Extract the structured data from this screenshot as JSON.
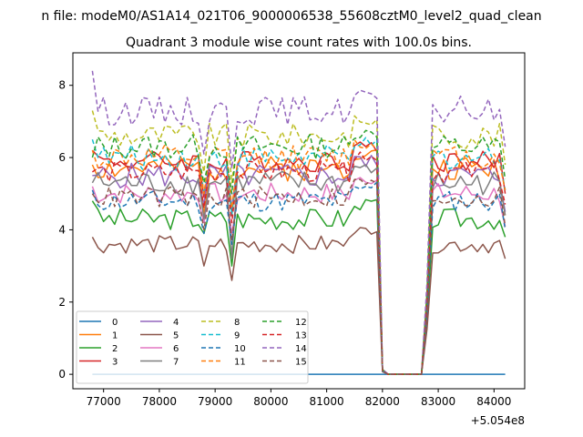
{
  "suptitle": "n file: modeM0/AS1A14_021T06_9000006538_55608cztM0_level2_quad_clean",
  "chart_data": {
    "type": "line",
    "title": "Quadrant 3 module wise count rates with 100.0s bins.",
    "xlabel": "",
    "ylabel": "",
    "x_offset_label": "+5.054e8",
    "xlim": [
      76450,
      84550
    ],
    "ylim": [
      -0.4,
      8.9
    ],
    "xticks": [
      77000,
      78000,
      79000,
      80000,
      81000,
      82000,
      83000,
      84000
    ],
    "xtick_labels": [
      "77000",
      "78000",
      "79000",
      "80000",
      "81000",
      "82000",
      "83000",
      "84000"
    ],
    "yticks": [
      0,
      2,
      4,
      6,
      8
    ],
    "ytick_labels": [
      "0",
      "2",
      "4",
      "6",
      "8"
    ],
    "grid": false,
    "legend_position": "lower-left",
    "legend_columns": 4,
    "segments": [
      {
        "start": 76800,
        "end": 81900,
        "step": 100
      },
      {
        "start": 82000,
        "end": 82700,
        "step": 100
      },
      {
        "start": 82800,
        "end": 84200,
        "step": 100
      }
    ],
    "series": [
      {
        "name": "0",
        "color": "#1f77b4",
        "dash": "solid",
        "level": 0.0,
        "start": 0.0,
        "dips": [
          0,
          0,
          0
        ],
        "seed": 1,
        "wiggle": 0.0
      },
      {
        "name": "1",
        "color": "#ff7f0e",
        "dash": "solid",
        "level": 5.7,
        "start": 5.8,
        "dips": [
          4.4,
          4.5,
          4.4
        ],
        "seed": 2,
        "wiggle": 0.35
      },
      {
        "name": "2",
        "color": "#2ca02c",
        "dash": "solid",
        "level": 4.3,
        "start": 4.8,
        "dips": [
          3.9,
          3.0,
          3.8
        ],
        "seed": 3,
        "wiggle": 0.3
      },
      {
        "name": "3",
        "color": "#d62728",
        "dash": "solid",
        "level": 5.9,
        "start": 6.2,
        "dips": [
          4.9,
          4.5,
          5.0
        ],
        "seed": 4,
        "wiggle": 0.3
      },
      {
        "name": "4",
        "color": "#9467bd",
        "dash": "solid",
        "level": 5.5,
        "start": 5.5,
        "dips": [
          4.7,
          4.6,
          4.5
        ],
        "seed": 5,
        "wiggle": 0.35
      },
      {
        "name": "5",
        "color": "#8c564b",
        "dash": "solid",
        "level": 3.6,
        "start": 3.8,
        "dips": [
          3.0,
          2.6,
          3.2
        ],
        "seed": 6,
        "wiggle": 0.25
      },
      {
        "name": "6",
        "color": "#e377c2",
        "dash": "solid",
        "level": 5.0,
        "start": 5.2,
        "dips": [
          4.2,
          3.9,
          4.1
        ],
        "seed": 7,
        "wiggle": 0.3
      },
      {
        "name": "7",
        "color": "#7f7f7f",
        "dash": "solid",
        "level": 5.3,
        "start": 5.3,
        "dips": [
          4.3,
          3.2,
          4.4
        ],
        "seed": 8,
        "wiggle": 0.35
      },
      {
        "name": "8",
        "color": "#bcbd22",
        "dash": "dashed",
        "level": 6.6,
        "start": 7.3,
        "dips": [
          5.6,
          5.3,
          5.8
        ],
        "seed": 9,
        "wiggle": 0.35
      },
      {
        "name": "9",
        "color": "#17becf",
        "dash": "dashed",
        "level": 6.0,
        "start": 6.5,
        "dips": [
          5.0,
          4.4,
          5.1
        ],
        "seed": 10,
        "wiggle": 0.35
      },
      {
        "name": "10",
        "color": "#1f77b4",
        "dash": "dashed",
        "level": 4.8,
        "start": 5.1,
        "dips": [
          3.9,
          3.6,
          4.0
        ],
        "seed": 11,
        "wiggle": 0.3
      },
      {
        "name": "11",
        "color": "#ff7f0e",
        "dash": "dashed",
        "level": 6.0,
        "start": 6.2,
        "dips": [
          5.0,
          4.6,
          5.1
        ],
        "seed": 12,
        "wiggle": 0.35
      },
      {
        "name": "12",
        "color": "#2ca02c",
        "dash": "dashed",
        "level": 6.3,
        "start": 6.0,
        "dips": [
          5.3,
          5.0,
          5.4
        ],
        "seed": 13,
        "wiggle": 0.35
      },
      {
        "name": "13",
        "color": "#d62728",
        "dash": "dashed",
        "level": 5.6,
        "start": 5.6,
        "dips": [
          4.6,
          4.2,
          4.7
        ],
        "seed": 14,
        "wiggle": 0.3
      },
      {
        "name": "14",
        "color": "#9467bd",
        "dash": "dashed",
        "level": 7.3,
        "start": 8.4,
        "dips": [
          6.1,
          5.7,
          6.3
        ],
        "seed": 15,
        "wiggle": 0.4
      },
      {
        "name": "15",
        "color": "#8c564b",
        "dash": "dashed",
        "level": 4.9,
        "start": 5.0,
        "dips": [
          4.0,
          3.7,
          4.1
        ],
        "seed": 16,
        "wiggle": 0.3
      }
    ]
  }
}
